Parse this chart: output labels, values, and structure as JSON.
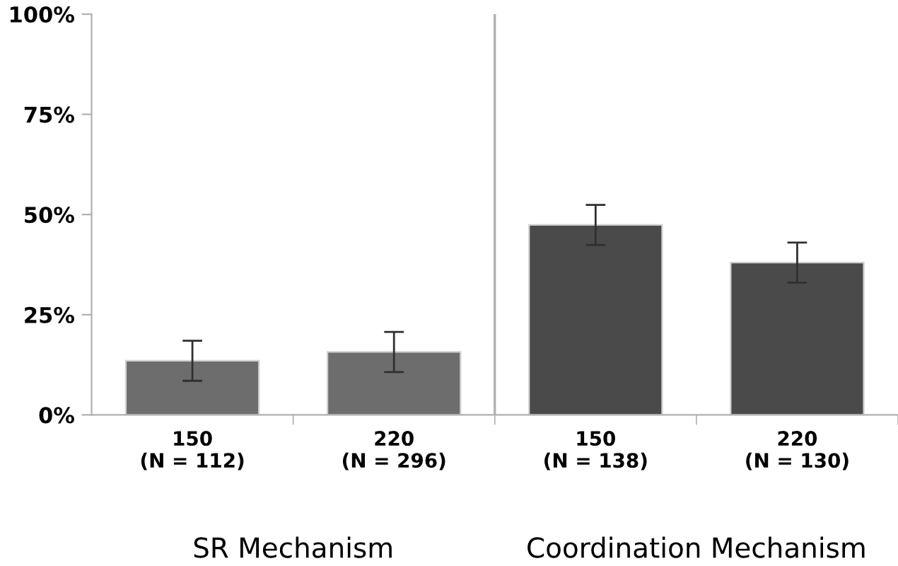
{
  "chart_data": {
    "type": "bar",
    "categories": [
      "150\n(N = 112)",
      "220\n(N = 296)",
      "150\n(N = 138)",
      "220\n(N = 130)"
    ],
    "values": [
      13.5,
      15.7,
      47.4,
      38.0
    ],
    "errors": [
      5,
      5,
      5,
      5
    ],
    "colors": [
      "#6d6d6d",
      "#6d6d6d",
      "#4a4a4a",
      "#4a4a4a"
    ],
    "ylim": [
      0,
      100
    ],
    "yticks": [
      {
        "value": 0,
        "label": "0%"
      },
      {
        "value": 25,
        "label": "25%"
      },
      {
        "value": 50,
        "label": "50%"
      },
      {
        "value": 75,
        "label": "75%"
      },
      {
        "value": 100,
        "label": "100%"
      }
    ],
    "annotations": [
      "SR Mechanism",
      "Coordination Mechanism"
    ],
    "grid": false,
    "legend": false
  }
}
